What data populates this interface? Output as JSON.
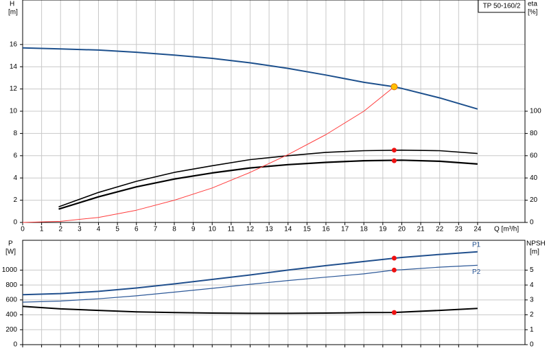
{
  "chart_data": [
    {
      "type": "line",
      "title": "TP 50-160/2",
      "ylabel": "H",
      "yunit": "[m]",
      "y2label": "eta",
      "y2unit": "[%]",
      "xlabel": "Q [m³/h]",
      "xlim": [
        0,
        26.5
      ],
      "xticks": [
        0,
        1,
        2,
        3,
        4,
        5,
        6,
        7,
        8,
        9,
        10,
        11,
        12,
        13,
        14,
        15,
        16,
        17,
        18,
        19,
        20,
        21,
        22,
        23,
        24
      ],
      "ylim": [
        0,
        20
      ],
      "yticks": [
        0,
        2,
        4,
        6,
        8,
        10,
        12,
        14,
        16
      ],
      "y2lim": [
        0,
        200
      ],
      "y2ticks": [
        0,
        20,
        40,
        60,
        80,
        100
      ],
      "grid": true,
      "series": [
        {
          "color": "#1c4f8c",
          "width": 2,
          "axis": "y",
          "x": [
            0,
            2,
            4,
            6,
            8,
            10,
            12,
            14,
            16,
            18,
            19.6,
            20,
            22,
            24
          ],
          "values": [
            15.7,
            15.6,
            15.5,
            15.3,
            15.05,
            14.75,
            14.35,
            13.85,
            13.25,
            12.6,
            12.2,
            12.05,
            11.2,
            10.2
          ]
        },
        {
          "color": "#000000",
          "width": 1.6,
          "axis": "y2",
          "x": [
            1.9,
            4,
            6,
            8,
            10,
            12,
            14,
            16,
            18,
            20,
            22,
            24
          ],
          "values": [
            14,
            27,
            37,
            45,
            51,
            56.5,
            60,
            63,
            64.5,
            65,
            64.5,
            62
          ]
        },
        {
          "color": "#000000",
          "width": 2.2,
          "axis": "y2",
          "x": [
            1.9,
            4,
            6,
            8,
            10,
            12,
            14,
            16,
            18,
            20,
            22,
            24
          ],
          "values": [
            12,
            23,
            32,
            39,
            44.5,
            49,
            52,
            54,
            55.5,
            56,
            55,
            52.5
          ]
        },
        {
          "color": "#ff3b3b",
          "width": 1,
          "axis": "y",
          "x": [
            0,
            2,
            4,
            6,
            8,
            10,
            12,
            14,
            16,
            18,
            19.6
          ],
          "values": [
            0,
            0.1,
            0.45,
            1.1,
            2.0,
            3.1,
            4.5,
            6.1,
            7.9,
            10.0,
            12.2
          ]
        }
      ],
      "points": [
        {
          "x": 19.6,
          "y": 12.2,
          "axis": "y",
          "color": "#ffc000"
        },
        {
          "x": 19.6,
          "y": 65,
          "axis": "y2",
          "color": "#ee1111"
        },
        {
          "x": 19.6,
          "y": 55.5,
          "axis": "y2",
          "color": "#ee1111"
        }
      ]
    },
    {
      "type": "line",
      "ylabel": "P",
      "yunit": "[W]",
      "y2label": "NPSH",
      "y2unit": "[m]",
      "xlim": [
        0,
        26.5
      ],
      "xticks": [
        0,
        1,
        2,
        3,
        4,
        5,
        6,
        7,
        8,
        9,
        10,
        11,
        12,
        13,
        14,
        15,
        16,
        17,
        18,
        19,
        20,
        21,
        22,
        23,
        24
      ],
      "ylim": [
        0,
        1400
      ],
      "yticks": [
        0,
        200,
        400,
        600,
        800,
        1000
      ],
      "y2lim": [
        0,
        7
      ],
      "y2ticks": [
        0,
        1,
        2,
        3,
        4,
        5
      ],
      "grid": true,
      "series": [
        {
          "name": "P1",
          "color": "#1f4e8c",
          "width": 2,
          "axis": "y",
          "x": [
            0,
            2,
            4,
            6,
            8,
            10,
            12,
            14,
            16,
            18,
            19.6,
            20,
            22,
            24
          ],
          "values": [
            670,
            685,
            715,
            760,
            815,
            875,
            935,
            1000,
            1060,
            1115,
            1160,
            1170,
            1210,
            1245
          ]
        },
        {
          "name": "P2",
          "color": "#2b5797",
          "width": 1.2,
          "axis": "y",
          "x": [
            0,
            2,
            4,
            6,
            8,
            10,
            12,
            14,
            16,
            18,
            19.6,
            20,
            22,
            24
          ],
          "values": [
            570,
            585,
            615,
            655,
            705,
            755,
            810,
            860,
            905,
            950,
            1000,
            1005,
            1040,
            1065
          ]
        },
        {
          "color": "#000000",
          "width": 2,
          "axis": "y2",
          "x": [
            0,
            2,
            4,
            6,
            8,
            10,
            12,
            14,
            16,
            18,
            19.6,
            22,
            24
          ],
          "values": [
            2.57,
            2.4,
            2.3,
            2.2,
            2.15,
            2.12,
            2.1,
            2.1,
            2.12,
            2.15,
            2.16,
            2.3,
            2.43
          ]
        }
      ],
      "points": [
        {
          "x": 19.6,
          "y": 1160,
          "axis": "y",
          "color": "#ee1111"
        },
        {
          "x": 19.6,
          "y": 1000,
          "axis": "y",
          "color": "#ee1111"
        },
        {
          "x": 19.6,
          "y": 2.16,
          "axis": "y2",
          "color": "#ee1111"
        }
      ]
    }
  ]
}
